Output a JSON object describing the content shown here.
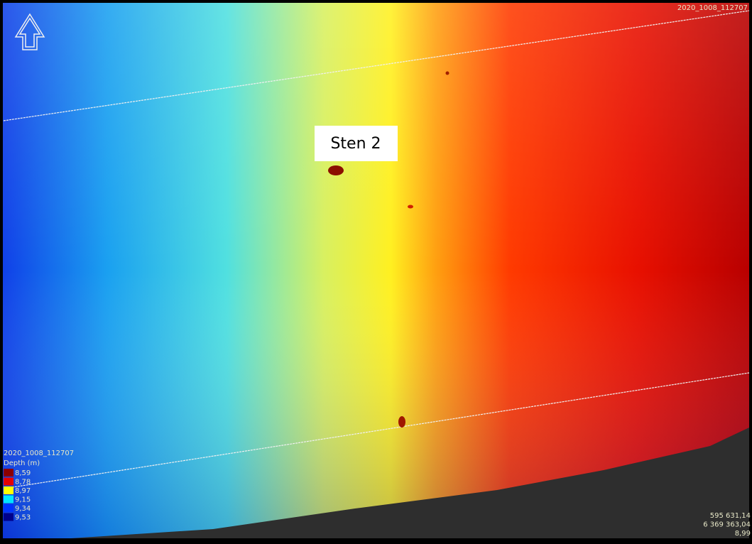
{
  "layer_name": "2020_1008_112707",
  "annotation": "Sten 2",
  "legend": {
    "title": "2020_1008_112707",
    "subtitle": "Depth (m)",
    "items": [
      {
        "label": "8,59",
        "color": "#8b0000"
      },
      {
        "label": "8,78",
        "color": "#e60000"
      },
      {
        "label": "8,97",
        "color": "#ffff00"
      },
      {
        "label": "9,15",
        "color": "#00e5ff"
      },
      {
        "label": "9,34",
        "color": "#0033ff"
      },
      {
        "label": "9,53",
        "color": "#00008b"
      }
    ]
  },
  "cursor_info": [
    "595 631,14",
    "6 369 363,04",
    "8,99"
  ]
}
